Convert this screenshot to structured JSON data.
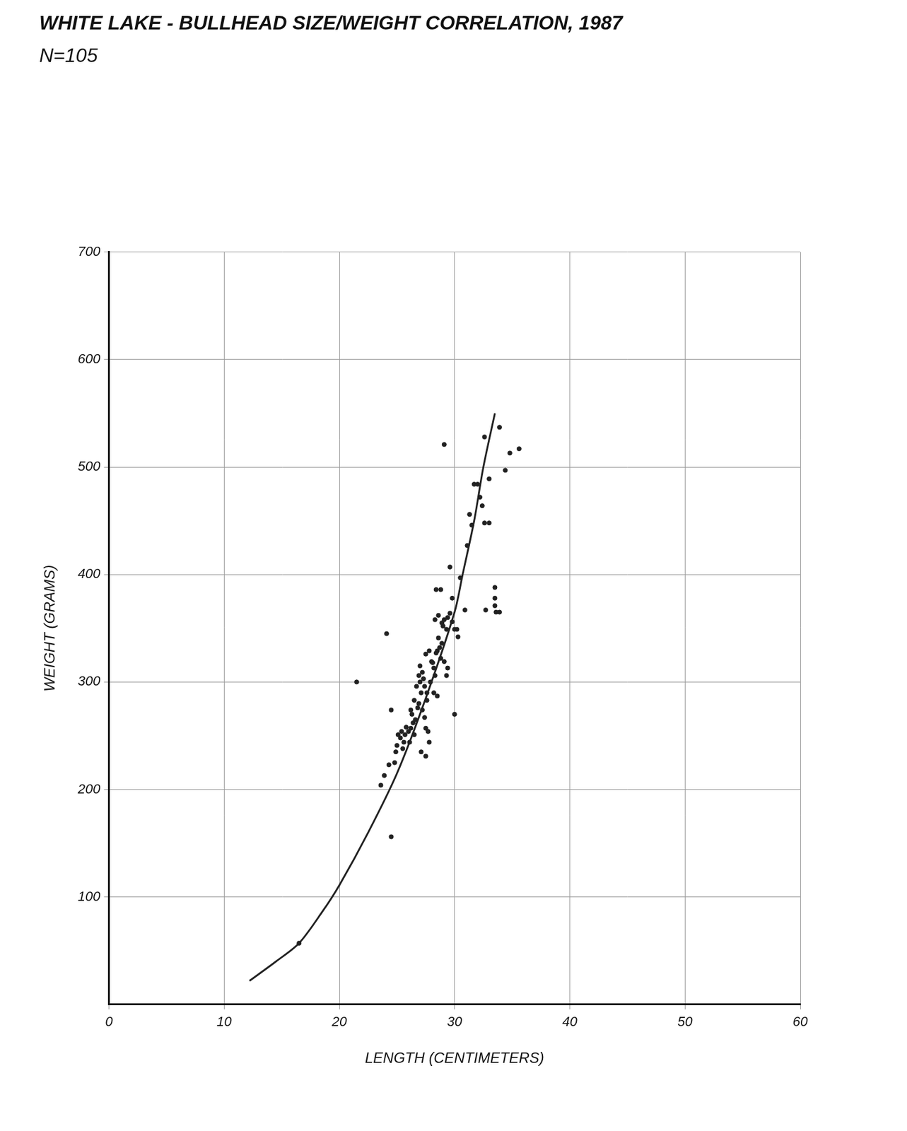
{
  "chart_data": {
    "type": "scatter",
    "title": "WHITE LAKE - BULLHEAD SIZE/WEIGHT CORRELATION, 1987",
    "subtitle": "N=105",
    "x_label": "LENGTH (CENTIMETERS)",
    "y_label": "WEIGHT (GRAMS)",
    "xlim": [
      0,
      60
    ],
    "xticks": [
      0,
      10,
      20,
      30,
      40,
      50,
      60
    ],
    "ylim": [
      0,
      700
    ],
    "yticks": [
      100,
      200,
      300,
      400,
      500,
      600,
      700
    ],
    "grid": true,
    "series": [
      {
        "type": "scatter",
        "color": "#222222",
        "marker": "circle",
        "x": [
          21.5,
          24.1,
          23.6,
          23.9,
          24.5,
          24.5,
          24.3,
          24.8,
          24.9,
          25.0,
          25.1,
          25.4,
          25.6,
          25.7,
          26.0,
          26.2,
          26.5,
          26.1,
          26.3,
          26.2,
          26.5,
          26.7,
          26.9,
          27.0,
          27.2,
          27.3,
          27.1,
          26.9,
          27.2,
          27.4,
          27.1,
          27.5,
          27.5,
          27.7,
          27.8,
          27.5,
          27.8,
          28.0,
          28.2,
          28.3,
          28.5,
          28.7,
          28.8,
          28.5,
          28.2,
          28.9,
          29.1,
          29.3,
          28.3,
          28.6,
          28.9,
          29.1,
          29.4,
          29.8,
          29.3,
          27.9,
          27.6,
          29.4,
          29.1,
          28.4,
          28.8,
          29.6,
          29.8,
          30.0,
          30.2,
          30.0,
          30.5,
          30.9,
          31.1,
          31.5,
          32.0,
          31.7,
          32.2,
          32.4,
          32.6,
          33.0,
          32.7,
          33.0,
          32.6,
          33.5,
          33.5,
          33.5,
          33.6,
          33.9,
          33.9,
          34.4,
          34.8,
          35.6,
          25.3,
          25.8,
          26.4,
          26.8,
          27.0,
          27.6,
          28.1,
          28.6,
          29.0,
          29.6,
          30.3,
          31.3,
          25.5,
          26.6,
          27.4,
          28.4,
          16.5
        ],
        "values": [
          300,
          345,
          204,
          213,
          156,
          274,
          223,
          225,
          235,
          241,
          251,
          254,
          244,
          251,
          254,
          257,
          251,
          244,
          270,
          274,
          283,
          296,
          306,
          300,
          309,
          303,
          290,
          280,
          274,
          267,
          235,
          231,
          257,
          254,
          244,
          326,
          329,
          319,
          313,
          306,
          329,
          332,
          322,
          287,
          290,
          336,
          319,
          306,
          358,
          362,
          355,
          358,
          360,
          356,
          349,
          300,
          290,
          313,
          521,
          386,
          386,
          407,
          378,
          349,
          349,
          270,
          397,
          367,
          427,
          446,
          484,
          484,
          472,
          464,
          448,
          448,
          367,
          489,
          528,
          388,
          378,
          371,
          365,
          365,
          537,
          497,
          513,
          517,
          248,
          258,
          262,
          276,
          315,
          283,
          318,
          341,
          352,
          364,
          342,
          456,
          238,
          265,
          296,
          327,
          57
        ]
      },
      {
        "type": "line",
        "color": "#222222",
        "line_style": "solid",
        "x": [
          12.2,
          14.5,
          16.5,
          18.5,
          20,
          22.5,
          25,
          27.5,
          30,
          30.7,
          31.7,
          32.5,
          33.5
        ],
        "values": [
          22,
          40,
          57,
          86,
          111,
          160,
          215,
          285,
          365,
          400,
          450,
          500,
          550
        ]
      }
    ]
  }
}
